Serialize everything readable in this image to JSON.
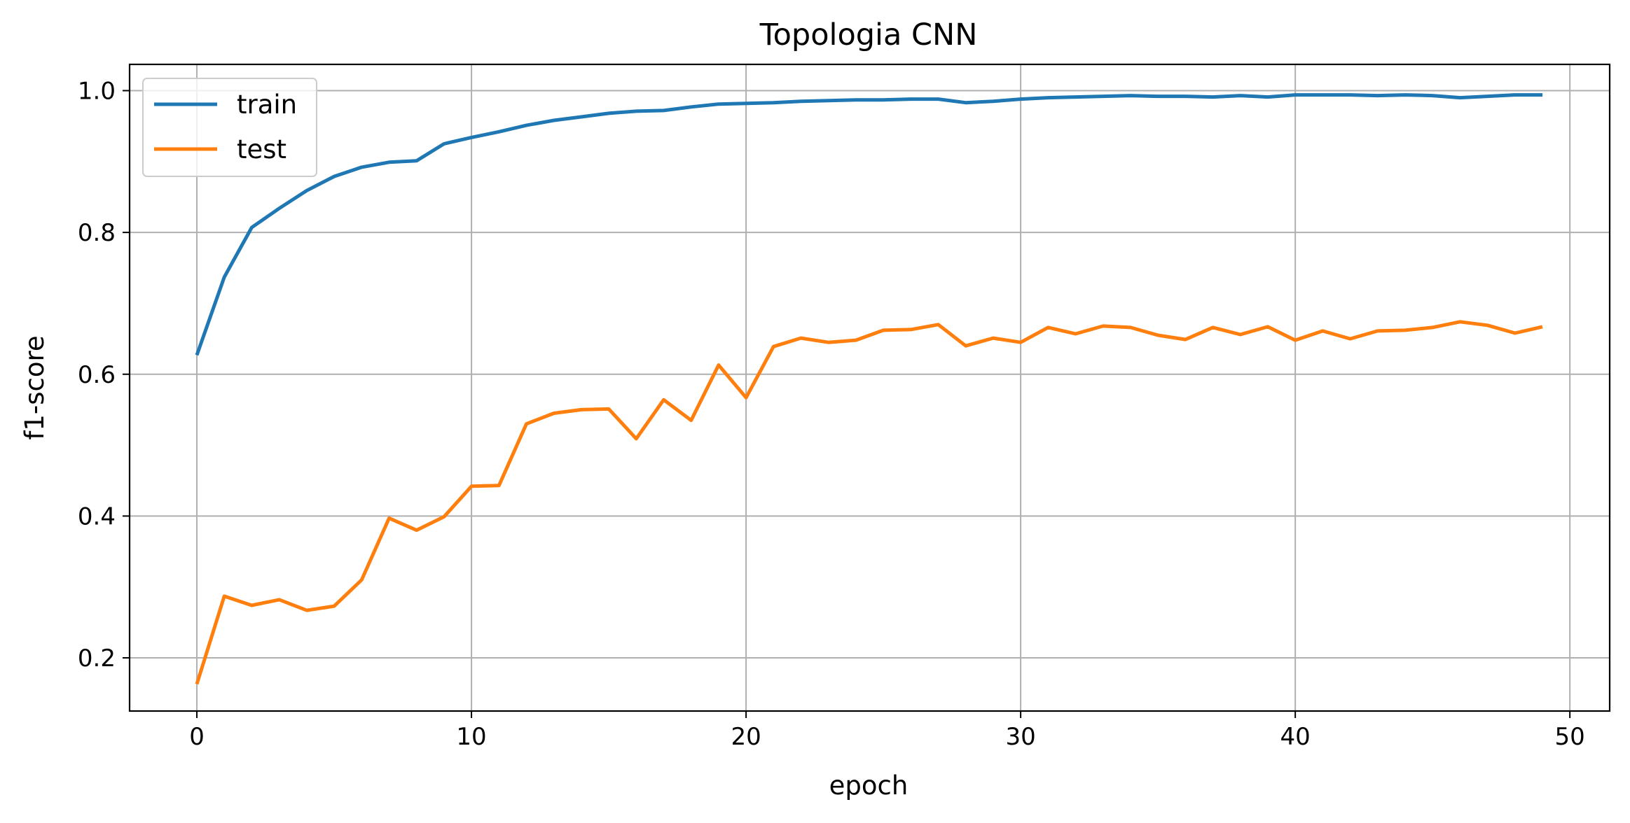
{
  "chart_data": {
    "type": "line",
    "title": "Topologia CNN",
    "xlabel": "epoch",
    "ylabel": "f1-score",
    "xlim": [
      -2.45,
      51.45
    ],
    "ylim": [
      0.125,
      1.037
    ],
    "xticks": [
      0,
      10,
      20,
      30,
      40,
      50
    ],
    "xtick_labels": [
      "0",
      "10",
      "20",
      "30",
      "40",
      "50"
    ],
    "yticks": [
      0.2,
      0.4,
      0.6,
      0.8,
      1.0
    ],
    "ytick_labels": [
      "0.2",
      "0.4",
      "0.6",
      "0.8",
      "1.0"
    ],
    "grid": true,
    "legend_position": "upper-left",
    "x": [
      0,
      1,
      2,
      3,
      4,
      5,
      6,
      7,
      8,
      9,
      10,
      11,
      12,
      13,
      14,
      15,
      16,
      17,
      18,
      19,
      20,
      21,
      22,
      23,
      24,
      25,
      26,
      27,
      28,
      29,
      30,
      31,
      32,
      33,
      34,
      35,
      36,
      37,
      38,
      39,
      40,
      41,
      42,
      43,
      44,
      45,
      46,
      47,
      48,
      49
    ],
    "series": [
      {
        "name": "train",
        "color": "#1f77b4",
        "values": [
          0.627,
          0.737,
          0.807,
          0.834,
          0.859,
          0.879,
          0.892,
          0.899,
          0.901,
          0.925,
          0.934,
          0.942,
          0.951,
          0.958,
          0.963,
          0.968,
          0.971,
          0.972,
          0.977,
          0.981,
          0.982,
          0.983,
          0.985,
          0.986,
          0.987,
          0.987,
          0.988,
          0.988,
          0.983,
          0.985,
          0.988,
          0.99,
          0.991,
          0.992,
          0.993,
          0.992,
          0.992,
          0.991,
          0.993,
          0.991,
          0.994,
          0.994,
          0.994,
          0.993,
          0.994,
          0.993,
          0.99,
          0.992,
          0.994,
          0.994
        ]
      },
      {
        "name": "test",
        "color": "#ff7f0e",
        "values": [
          0.163,
          0.287,
          0.274,
          0.282,
          0.267,
          0.273,
          0.31,
          0.397,
          0.38,
          0.399,
          0.442,
          0.443,
          0.53,
          0.545,
          0.55,
          0.551,
          0.509,
          0.564,
          0.535,
          0.613,
          0.567,
          0.639,
          0.651,
          0.645,
          0.648,
          0.662,
          0.663,
          0.67,
          0.64,
          0.651,
          0.645,
          0.666,
          0.657,
          0.668,
          0.666,
          0.655,
          0.649,
          0.666,
          0.656,
          0.667,
          0.648,
          0.661,
          0.65,
          0.661,
          0.662,
          0.666,
          0.674,
          0.669,
          0.658,
          0.667
        ]
      }
    ]
  }
}
